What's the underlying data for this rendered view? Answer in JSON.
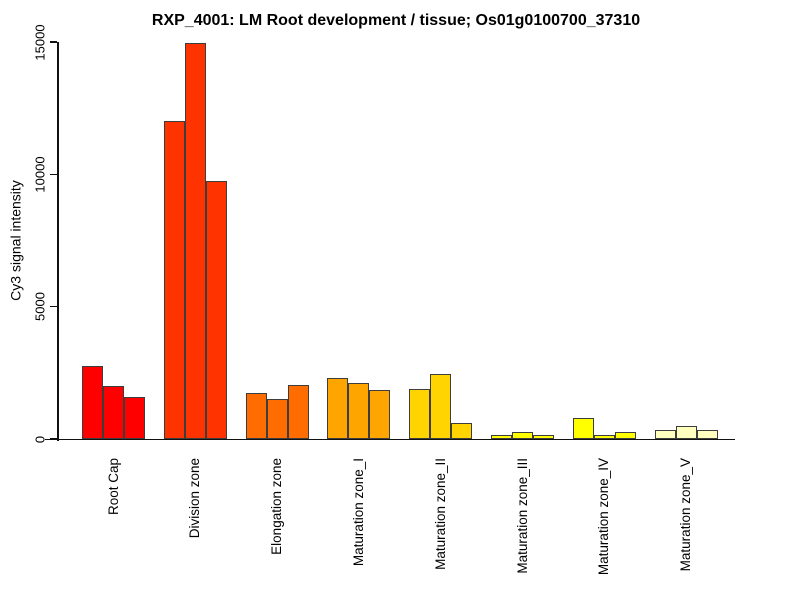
{
  "title": "RXP_4001: LM Root development / tissue; Os01g0100700_37310",
  "chart_data": {
    "type": "bar",
    "title": "RXP_4001: LM Root development / tissue; Os01g0100700_37310",
    "xlabel": "",
    "ylabel": "Cy3 signal intensity",
    "ylim": [
      0,
      15000
    ],
    "yticks": [
      0,
      5000,
      10000,
      15000
    ],
    "grid": false,
    "legend": "none",
    "bars_per_group": 3,
    "bar_border_color": "#3d3d3d",
    "axis_color": "#111111",
    "background_color": "#ffffff",
    "categories": [
      "Root Cap",
      "Division zone",
      "Elongation zone",
      "Maturation zone_I",
      "Maturation zone_II",
      "Maturation zone_III",
      "Maturation zone_IV",
      "Maturation zone_V"
    ],
    "groups": [
      {
        "label": "Root Cap",
        "color": "#ff0000",
        "values": [
          2750,
          2000,
          1600
        ]
      },
      {
        "label": "Division zone",
        "color": "#ff3300",
        "values": [
          12000,
          14950,
          9750
        ]
      },
      {
        "label": "Elongation zone",
        "color": "#ff6d00",
        "values": [
          1750,
          1500,
          2050
        ]
      },
      {
        "label": "Maturation zone_I",
        "color": "#ffa500",
        "values": [
          2300,
          2100,
          1850
        ]
      },
      {
        "label": "Maturation zone_II",
        "color": "#ffd400",
        "values": [
          1900,
          2450,
          600
        ]
      },
      {
        "label": "Maturation zone_III",
        "color": "#ffff00",
        "values": [
          150,
          250,
          150
        ]
      },
      {
        "label": "Maturation zone_IV",
        "color": "#ffff00",
        "values": [
          800,
          150,
          250
        ]
      },
      {
        "label": "Maturation zone_V",
        "color": "#ffffbf",
        "values": [
          350,
          500,
          350
        ]
      }
    ]
  }
}
